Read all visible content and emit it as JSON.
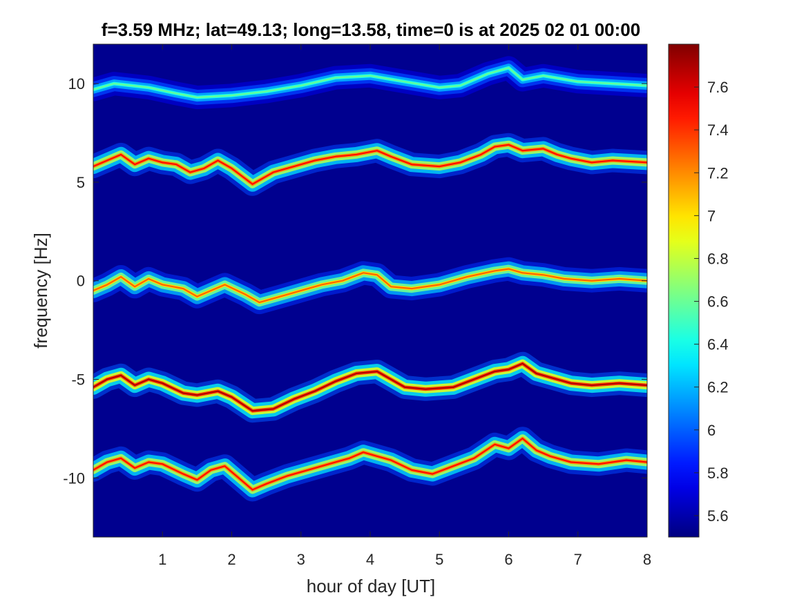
{
  "chart_data": {
    "type": "heatmap",
    "title": "f=3.59 MHz;  lat=49.13; long=13.58, time=0 is at 2025 02 01 00:00",
    "xlabel": "hour of day [UT]",
    "ylabel": "frequency [Hz]",
    "xlim": [
      0,
      8
    ],
    "ylim": [
      -13,
      12
    ],
    "x_ticks": [
      1,
      2,
      3,
      4,
      5,
      6,
      7,
      8
    ],
    "x_tick_labels": [
      "1",
      "2",
      "3",
      "4",
      "5",
      "6",
      "7",
      "8"
    ],
    "y_ticks": [
      10,
      5,
      0,
      -5,
      -10
    ],
    "y_tick_labels": [
      "10",
      "5",
      "0",
      "-5",
      "-10"
    ],
    "colorbar": {
      "colormap": "jet",
      "clim": [
        5.5,
        7.8
      ],
      "ticks": [
        5.6,
        5.8,
        6,
        6.2,
        6.4,
        6.6,
        6.8,
        7,
        7.2,
        7.4,
        7.6
      ],
      "tick_labels": [
        "5.6",
        "5.8",
        "6",
        "6.2",
        "6.4",
        "6.6",
        "6.8",
        "7",
        "7.2",
        "7.4",
        "7.6"
      ]
    },
    "background_value": 5.5,
    "traces": [
      {
        "name": "",
        "peak": 6.6,
        "points": [
          [
            0.0,
            9.7
          ],
          [
            0.3,
            10.0
          ],
          [
            0.8,
            9.8
          ],
          [
            1.2,
            9.5
          ],
          [
            1.5,
            9.3
          ],
          [
            2.0,
            9.4
          ],
          [
            2.5,
            9.6
          ],
          [
            3.0,
            9.9
          ],
          [
            3.5,
            10.3
          ],
          [
            4.0,
            10.4
          ],
          [
            4.5,
            10.1
          ],
          [
            5.0,
            9.8
          ],
          [
            5.3,
            9.9
          ],
          [
            5.7,
            10.5
          ],
          [
            6.0,
            10.8
          ],
          [
            6.2,
            10.2
          ],
          [
            6.5,
            10.4
          ],
          [
            7.0,
            10.1
          ],
          [
            7.5,
            10.0
          ],
          [
            8.0,
            9.9
          ]
        ]
      },
      {
        "name": "",
        "peak": 7.5,
        "points": [
          [
            0.0,
            5.8
          ],
          [
            0.2,
            6.1
          ],
          [
            0.4,
            6.4
          ],
          [
            0.6,
            5.9
          ],
          [
            0.8,
            6.2
          ],
          [
            1.0,
            6.0
          ],
          [
            1.2,
            5.9
          ],
          [
            1.4,
            5.5
          ],
          [
            1.6,
            5.7
          ],
          [
            1.8,
            6.1
          ],
          [
            2.0,
            5.7
          ],
          [
            2.3,
            4.9
          ],
          [
            2.6,
            5.5
          ],
          [
            2.9,
            5.8
          ],
          [
            3.2,
            6.1
          ],
          [
            3.5,
            6.3
          ],
          [
            3.8,
            6.4
          ],
          [
            4.1,
            6.6
          ],
          [
            4.3,
            6.3
          ],
          [
            4.6,
            5.9
          ],
          [
            5.0,
            5.8
          ],
          [
            5.3,
            6.0
          ],
          [
            5.6,
            6.4
          ],
          [
            5.8,
            6.8
          ],
          [
            6.0,
            6.9
          ],
          [
            6.2,
            6.6
          ],
          [
            6.5,
            6.7
          ],
          [
            6.7,
            6.4
          ],
          [
            6.9,
            6.2
          ],
          [
            7.2,
            6.0
          ],
          [
            7.5,
            6.1
          ],
          [
            8.0,
            6.0
          ]
        ]
      },
      {
        "name": "",
        "peak": 7.3,
        "points": [
          [
            0.0,
            -0.5
          ],
          [
            0.2,
            -0.2
          ],
          [
            0.4,
            0.2
          ],
          [
            0.6,
            -0.3
          ],
          [
            0.8,
            0.1
          ],
          [
            1.0,
            -0.2
          ],
          [
            1.3,
            -0.4
          ],
          [
            1.5,
            -0.8
          ],
          [
            1.7,
            -0.5
          ],
          [
            1.9,
            -0.2
          ],
          [
            2.2,
            -0.7
          ],
          [
            2.4,
            -1.1
          ],
          [
            2.7,
            -0.8
          ],
          [
            3.0,
            -0.5
          ],
          [
            3.3,
            -0.2
          ],
          [
            3.6,
            0.0
          ],
          [
            3.9,
            0.4
          ],
          [
            4.1,
            0.3
          ],
          [
            4.3,
            -0.3
          ],
          [
            4.6,
            -0.4
          ],
          [
            5.0,
            -0.2
          ],
          [
            5.4,
            0.2
          ],
          [
            5.8,
            0.5
          ],
          [
            6.0,
            0.6
          ],
          [
            6.2,
            0.4
          ],
          [
            6.5,
            0.3
          ],
          [
            6.8,
            0.1
          ],
          [
            7.2,
            0.0
          ],
          [
            7.6,
            0.1
          ],
          [
            8.0,
            0.0
          ]
        ]
      },
      {
        "name": "",
        "peak": 7.7,
        "points": [
          [
            0.0,
            -5.4
          ],
          [
            0.2,
            -5.0
          ],
          [
            0.4,
            -4.8
          ],
          [
            0.6,
            -5.3
          ],
          [
            0.8,
            -5.0
          ],
          [
            1.0,
            -5.2
          ],
          [
            1.3,
            -5.7
          ],
          [
            1.5,
            -5.8
          ],
          [
            1.8,
            -5.6
          ],
          [
            2.0,
            -5.9
          ],
          [
            2.3,
            -6.6
          ],
          [
            2.6,
            -6.5
          ],
          [
            2.9,
            -6.0
          ],
          [
            3.2,
            -5.6
          ],
          [
            3.5,
            -5.1
          ],
          [
            3.8,
            -4.7
          ],
          [
            4.1,
            -4.6
          ],
          [
            4.3,
            -5.0
          ],
          [
            4.5,
            -5.4
          ],
          [
            4.8,
            -5.5
          ],
          [
            5.2,
            -5.4
          ],
          [
            5.5,
            -5.0
          ],
          [
            5.8,
            -4.6
          ],
          [
            6.0,
            -4.5
          ],
          [
            6.2,
            -4.2
          ],
          [
            6.4,
            -4.7
          ],
          [
            6.6,
            -4.9
          ],
          [
            6.9,
            -5.2
          ],
          [
            7.2,
            -5.3
          ],
          [
            7.6,
            -5.2
          ],
          [
            8.0,
            -5.3
          ]
        ]
      },
      {
        "name": "",
        "peak": 7.5,
        "points": [
          [
            0.0,
            -9.6
          ],
          [
            0.2,
            -9.2
          ],
          [
            0.4,
            -9.0
          ],
          [
            0.6,
            -9.5
          ],
          [
            0.8,
            -9.2
          ],
          [
            1.0,
            -9.3
          ],
          [
            1.3,
            -9.8
          ],
          [
            1.5,
            -10.1
          ],
          [
            1.7,
            -9.6
          ],
          [
            1.9,
            -9.4
          ],
          [
            2.1,
            -10.0
          ],
          [
            2.3,
            -10.6
          ],
          [
            2.5,
            -10.3
          ],
          [
            2.8,
            -9.9
          ],
          [
            3.1,
            -9.6
          ],
          [
            3.4,
            -9.3
          ],
          [
            3.7,
            -9.0
          ],
          [
            3.9,
            -8.7
          ],
          [
            4.1,
            -8.9
          ],
          [
            4.3,
            -9.1
          ],
          [
            4.6,
            -9.6
          ],
          [
            4.9,
            -9.8
          ],
          [
            5.2,
            -9.4
          ],
          [
            5.5,
            -9.0
          ],
          [
            5.8,
            -8.3
          ],
          [
            6.0,
            -8.5
          ],
          [
            6.2,
            -8.0
          ],
          [
            6.4,
            -8.6
          ],
          [
            6.6,
            -8.9
          ],
          [
            6.9,
            -9.2
          ],
          [
            7.3,
            -9.3
          ],
          [
            7.7,
            -9.1
          ],
          [
            8.0,
            -9.2
          ]
        ]
      }
    ]
  }
}
